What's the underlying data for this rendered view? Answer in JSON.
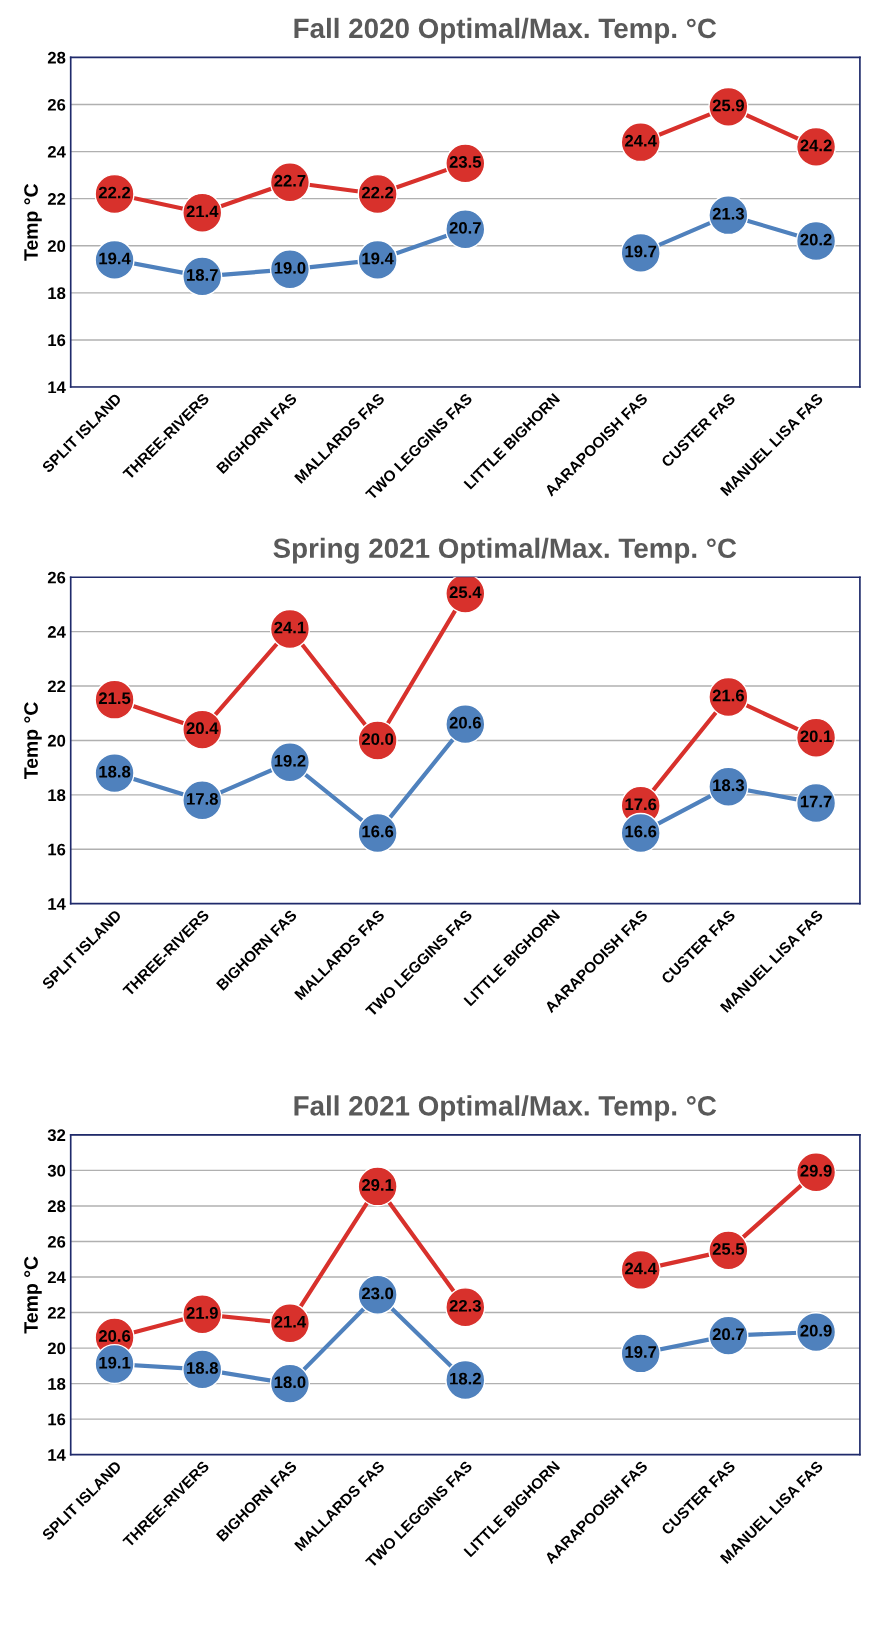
{
  "chart_data": [
    {
      "type": "line",
      "title": "Fall 2020 Optimal/Max. Temp. °C",
      "ylabel": "Temp °C",
      "categories": [
        "SPLIT ISLAND",
        "THREE-RIVERS",
        "BIGHORN FAS",
        "MALLARDS FAS",
        "TWO LEGGINS FAS",
        "LITTLE BIGHORN",
        "AARAPOOISH FAS",
        "CUSTER FAS",
        "MANUEL LISA FAS"
      ],
      "ylim": [
        14,
        28
      ],
      "yticks": [
        14,
        16,
        18,
        20,
        22,
        24,
        26,
        28
      ],
      "grid": "y",
      "legend": false,
      "marker": "circle",
      "series": [
        {
          "color": "#d8312c",
          "values": [
            22.2,
            21.4,
            22.7,
            22.2,
            23.5,
            null,
            24.4,
            25.9,
            24.2
          ],
          "value_labels": [
            "22.2",
            "21.4",
            "22.7",
            "22.2",
            "23.5",
            null,
            "24.4",
            "25.9",
            "24.2"
          ]
        },
        {
          "color": "#4f81bd",
          "values": [
            19.4,
            18.7,
            19.0,
            19.4,
            20.7,
            null,
            19.7,
            21.3,
            20.2
          ],
          "value_labels": [
            "19.4",
            "18.7",
            "19.0",
            "19.4",
            "20.7",
            null,
            "19.7",
            "21.3",
            "20.2"
          ]
        }
      ]
    },
    {
      "type": "line",
      "title": "Spring 2021 Optimal/Max. Temp. °C",
      "ylabel": "Temp °C",
      "categories": [
        "SPLIT ISLAND",
        "THREE-RIVERS",
        "BIGHORN FAS",
        "MALLARDS FAS",
        "TWO LEGGINS FAS",
        "LITTLE BIGHORN",
        "AARAPOOISH FAS",
        "CUSTER FAS",
        "MANUEL LISA FAS"
      ],
      "ylim": [
        14,
        26
      ],
      "yticks": [
        14,
        16,
        18,
        20,
        22,
        24,
        26
      ],
      "grid": "y",
      "legend": false,
      "marker": "circle",
      "series": [
        {
          "color": "#d8312c",
          "values": [
            21.5,
            20.4,
            24.1,
            20.0,
            25.4,
            null,
            17.6,
            21.6,
            20.1
          ],
          "value_labels": [
            "21.5",
            "20.4",
            "24.1",
            "20.0",
            "25.4",
            null,
            "17.6",
            "21.6",
            "20.1"
          ]
        },
        {
          "color": "#4f81bd",
          "values": [
            18.8,
            17.8,
            19.2,
            16.6,
            20.6,
            null,
            16.6,
            18.3,
            17.7
          ],
          "value_labels": [
            "18.8",
            "17.8",
            "19.2",
            "16.6",
            "20.6",
            null,
            "16.6",
            "18.3",
            "17.7"
          ]
        }
      ]
    },
    {
      "type": "line",
      "title": "Fall 2021 Optimal/Max. Temp. °C",
      "ylabel": "Temp °C",
      "categories": [
        "SPLIT ISLAND",
        "THREE-RIVERS",
        "BIGHORN FAS",
        "MALLARDS FAS",
        "TWO LEGGINS FAS",
        "LITTLE BIGHORN",
        "AARAPOOISH FAS",
        "CUSTER FAS",
        "MANUEL LISA FAS"
      ],
      "ylim": [
        14,
        32
      ],
      "yticks": [
        14,
        16,
        18,
        20,
        22,
        24,
        26,
        28,
        30,
        32
      ],
      "grid": "y",
      "legend": false,
      "marker": "circle",
      "series": [
        {
          "color": "#d8312c",
          "values": [
            20.6,
            21.9,
            21.4,
            29.1,
            22.3,
            null,
            24.4,
            25.5,
            29.9
          ],
          "value_labels": [
            "20.6",
            "21.9",
            "21.4",
            "29.1",
            "22.3",
            null,
            "24.4",
            "25.5",
            "29.9"
          ]
        },
        {
          "color": "#4f81bd",
          "values": [
            19.1,
            18.8,
            18.0,
            23.0,
            18.2,
            null,
            19.7,
            20.7,
            20.9
          ],
          "value_labels": [
            "19.1",
            "18.8",
            "18.0",
            "23.0",
            "18.2",
            null,
            "19.7",
            "20.7",
            "20.9"
          ]
        }
      ]
    }
  ]
}
